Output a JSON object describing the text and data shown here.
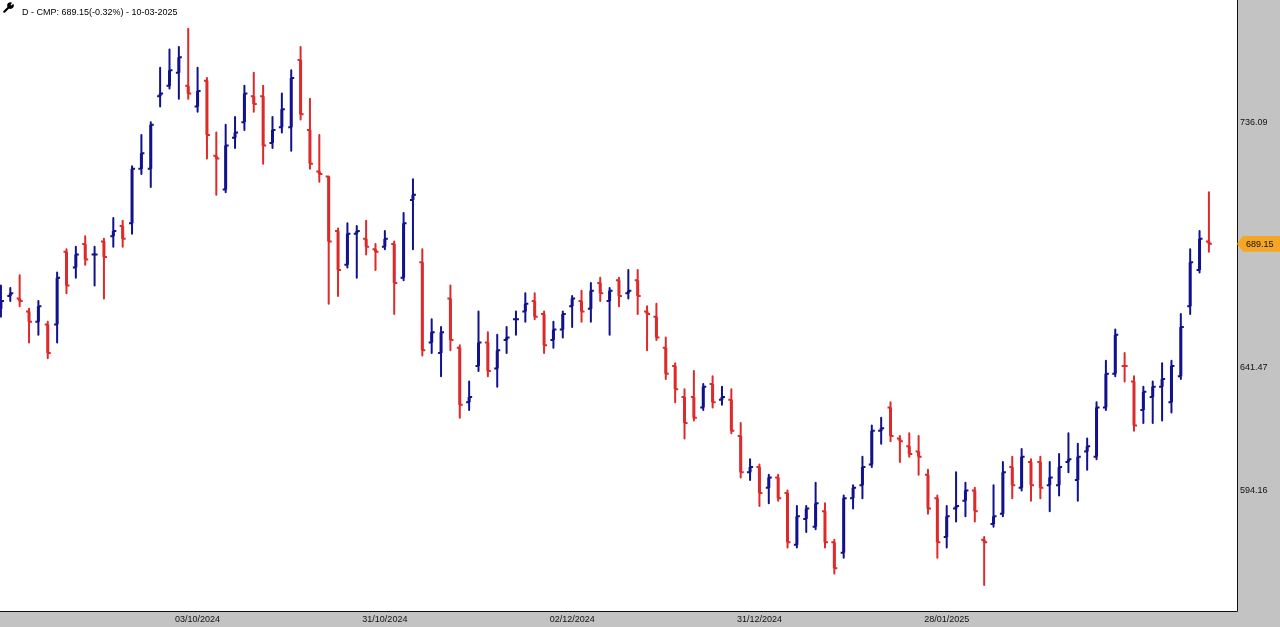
{
  "chart_data": {
    "type": "candlestick",
    "title": "D - CMP: 689.15(-0.32%) - 10-03-2025",
    "categories": [
      null,
      null,
      null,
      null,
      null,
      null,
      null,
      null,
      null,
      null,
      null,
      null,
      null,
      null,
      null,
      null,
      null,
      null,
      null,
      null,
      null,
      "03/10/2024",
      null,
      null,
      null,
      null,
      null,
      null,
      null,
      null,
      null,
      null,
      null,
      null,
      null,
      null,
      null,
      null,
      null,
      null,
      null,
      "31/10/2024",
      null,
      null,
      null,
      null,
      null,
      null,
      null,
      null,
      null,
      null,
      null,
      null,
      null,
      null,
      null,
      null,
      null,
      null,
      null,
      "02/12/2024",
      null,
      null,
      null,
      null,
      null,
      null,
      null,
      null,
      null,
      null,
      null,
      null,
      null,
      null,
      null,
      null,
      null,
      null,
      null,
      "31/12/2024",
      null,
      null,
      null,
      null,
      null,
      null,
      null,
      null,
      null,
      null,
      null,
      null,
      null,
      null,
      null,
      null,
      null,
      null,
      null,
      "28/01/2025",
      null,
      null,
      null,
      null,
      null,
      null,
      null,
      null,
      null,
      null,
      null,
      null,
      null,
      null,
      null,
      null,
      null,
      null,
      null,
      null,
      null,
      null,
      null,
      null,
      null,
      null,
      null,
      null
    ],
    "ohlc": [
      [
        664,
        673,
        661,
        667
      ],
      [
        669,
        672,
        667,
        670
      ],
      [
        668,
        677,
        665,
        667
      ],
      [
        663,
        664,
        651,
        659
      ],
      [
        659,
        667,
        654,
        665
      ],
      [
        658,
        659,
        645,
        647
      ],
      [
        658,
        678,
        651,
        676
      ],
      [
        686,
        687,
        670,
        673
      ],
      [
        680,
        688,
        676,
        685
      ],
      [
        689,
        692,
        681,
        683
      ],
      [
        685,
        688,
        673,
        685
      ],
      [
        690,
        691,
        668,
        684
      ],
      [
        692,
        699,
        688,
        694
      ],
      [
        696,
        698,
        688,
        691
      ],
      [
        697,
        719,
        693,
        718
      ],
      [
        718,
        731,
        716,
        724
      ],
      [
        718,
        736,
        711,
        735
      ],
      [
        746,
        757,
        742,
        747
      ],
      [
        750,
        764,
        749,
        756
      ],
      [
        755,
        765,
        745,
        761
      ],
      [
        750,
        772,
        745,
        747
      ],
      [
        742,
        757,
        740,
        748
      ],
      [
        752,
        753,
        722,
        731
      ],
      [
        723,
        732,
        708,
        722
      ],
      [
        710,
        735,
        709,
        727
      ],
      [
        730,
        738,
        726,
        732
      ],
      [
        736,
        750,
        733,
        747
      ],
      [
        746,
        755,
        740,
        743
      ],
      [
        746,
        750,
        720,
        727
      ],
      [
        728,
        738,
        726,
        733
      ],
      [
        734,
        747,
        732,
        741
      ],
      [
        734,
        756,
        725,
        753
      ],
      [
        760,
        765,
        737,
        739
      ],
      [
        733,
        745,
        718,
        720
      ],
      [
        717,
        731,
        713,
        716
      ],
      [
        715,
        715,
        666,
        690
      ],
      [
        694,
        695,
        669,
        679
      ],
      [
        681,
        697,
        680,
        693
      ],
      [
        693,
        696,
        676,
        694
      ],
      [
        691,
        698,
        685,
        688
      ],
      [
        687,
        689,
        679,
        686
      ],
      [
        688,
        694,
        687,
        691
      ],
      [
        689,
        690,
        662,
        674
      ],
      [
        676,
        701,
        675,
        697
      ],
      [
        706,
        714,
        687,
        708
      ],
      [
        682,
        687,
        646,
        648
      ],
      [
        651,
        660,
        647,
        655
      ],
      [
        647,
        657,
        638,
        655
      ],
      [
        668,
        673,
        648,
        652
      ],
      [
        649,
        650,
        622,
        627
      ],
      [
        628,
        636,
        625,
        630
      ],
      [
        642,
        663,
        640,
        651
      ],
      [
        651,
        655,
        638,
        640
      ],
      [
        641,
        654,
        634,
        648
      ],
      [
        652,
        657,
        647,
        653
      ],
      [
        660,
        663,
        654,
        660
      ],
      [
        663,
        670,
        659,
        666
      ],
      [
        667,
        670,
        660,
        661
      ],
      [
        662,
        663,
        647,
        650
      ],
      [
        652,
        659,
        649,
        656
      ],
      [
        656,
        663,
        653,
        662
      ],
      [
        665,
        669,
        657,
        668
      ],
      [
        667,
        671,
        659,
        663
      ],
      [
        664,
        674,
        659,
        671
      ],
      [
        674,
        676,
        667,
        670
      ],
      [
        667,
        672,
        654,
        671
      ],
      [
        675,
        676,
        665,
        669
      ],
      [
        670,
        679,
        668,
        671
      ],
      [
        675,
        679,
        662,
        669
      ],
      [
        663,
        665,
        648,
        662
      ],
      [
        661,
        666,
        652,
        653
      ],
      [
        649,
        653,
        637,
        639
      ],
      [
        642,
        643,
        628,
        633
      ],
      [
        630,
        633,
        614,
        620
      ],
      [
        630,
        640,
        621,
        622
      ],
      [
        626,
        635,
        625,
        634
      ],
      [
        635,
        638,
        626,
        628
      ],
      [
        629,
        634,
        627,
        630
      ],
      [
        629,
        633,
        616,
        617
      ],
      [
        615,
        620,
        599,
        601
      ],
      [
        601,
        606,
        598,
        603
      ],
      [
        603,
        604,
        588,
        593
      ],
      [
        595,
        600,
        589,
        599
      ],
      [
        599,
        600,
        590,
        591
      ],
      [
        593,
        594,
        572,
        574
      ],
      [
        573,
        588,
        572,
        584
      ],
      [
        583,
        588,
        578,
        587
      ],
      [
        580,
        597,
        579,
        589
      ],
      [
        586,
        589,
        572,
        574
      ],
      [
        574,
        575,
        562,
        564
      ],
      [
        570,
        592,
        568,
        591
      ],
      [
        591,
        596,
        587,
        595
      ],
      [
        596,
        607,
        591,
        603
      ],
      [
        604,
        619,
        603,
        617
      ],
      [
        617,
        622,
        612,
        618
      ],
      [
        626,
        628,
        613,
        615
      ],
      [
        614,
        615,
        605,
        613
      ],
      [
        611,
        616,
        607,
        608
      ],
      [
        609,
        615,
        600,
        607
      ],
      [
        600,
        602,
        585,
        587
      ],
      [
        591,
        592,
        568,
        574
      ],
      [
        576,
        588,
        572,
        584
      ],
      [
        587,
        601,
        582,
        588
      ],
      [
        590,
        597,
        584,
        594
      ],
      [
        594,
        595,
        582,
        586
      ],
      [
        575,
        576,
        557.5,
        574
      ],
      [
        581,
        596,
        580,
        584
      ],
      [
        585,
        605,
        584,
        601
      ],
      [
        603,
        607,
        591,
        596
      ],
      [
        595,
        610,
        594,
        607
      ],
      [
        605,
        606,
        590,
        596
      ],
      [
        605,
        607,
        591,
        595
      ],
      [
        596,
        605,
        586,
        599
      ],
      [
        596,
        608,
        592,
        603
      ],
      [
        605,
        616,
        601,
        606
      ],
      [
        598,
        612,
        590,
        607
      ],
      [
        609,
        614,
        602,
        611
      ],
      [
        607,
        628,
        606,
        626
      ],
      [
        626,
        644,
        625,
        639
      ],
      [
        639,
        656,
        638,
        654
      ],
      [
        642,
        647,
        636,
        642
      ],
      [
        636,
        638,
        617,
        619
      ],
      [
        625,
        634,
        620,
        632
      ],
      [
        630,
        636,
        620,
        634
      ],
      [
        634,
        643,
        621,
        637
      ],
      [
        628,
        644,
        624,
        642
      ],
      [
        638,
        662,
        637,
        657
      ],
      [
        665,
        687,
        662,
        682
      ],
      [
        679,
        694,
        678,
        691
      ],
      [
        690,
        709,
        686,
        689.15
      ]
    ],
    "colors": [
      "#12128c",
      "#12128c",
      "#dd2a2a",
      "#dd2a2a",
      "#12128c",
      "#dd2a2a",
      "#12128c",
      "#dd2a2a",
      "#12128c",
      "#dd2a2a",
      "#12128c",
      "#dd2a2a",
      "#12128c",
      "#dd2a2a",
      "#12128c",
      "#12128c",
      "#12128c",
      "#12128c",
      "#12128c",
      "#12128c",
      "#dd2a2a",
      "#12128c",
      "#dd2a2a",
      "#dd2a2a",
      "#12128c",
      "#12128c",
      "#12128c",
      "#dd2a2a",
      "#dd2a2a",
      "#12128c",
      "#12128c",
      "#12128c",
      "#dd2a2a",
      "#dd2a2a",
      "#dd2a2a",
      "#dd2a2a",
      "#dd2a2a",
      "#12128c",
      "#12128c",
      "#dd2a2a",
      "#dd2a2a",
      "#12128c",
      "#dd2a2a",
      "#12128c",
      "#12128c",
      "#dd2a2a",
      "#12128c",
      "#12128c",
      "#dd2a2a",
      "#dd2a2a",
      "#12128c",
      "#12128c",
      "#dd2a2a",
      "#12128c",
      "#12128c",
      "#12128c",
      "#12128c",
      "#dd2a2a",
      "#dd2a2a",
      "#12128c",
      "#12128c",
      "#12128c",
      "#dd2a2a",
      "#12128c",
      "#dd2a2a",
      "#12128c",
      "#dd2a2a",
      "#12128c",
      "#dd2a2a",
      "#dd2a2a",
      "#dd2a2a",
      "#dd2a2a",
      "#dd2a2a",
      "#dd2a2a",
      "#dd2a2a",
      "#12128c",
      "#dd2a2a",
      "#12128c",
      "#dd2a2a",
      "#dd2a2a",
      "#12128c",
      "#dd2a2a",
      "#12128c",
      "#dd2a2a",
      "#dd2a2a",
      "#12128c",
      "#12128c",
      "#12128c",
      "#dd2a2a",
      "#dd2a2a",
      "#12128c",
      "#12128c",
      "#12128c",
      "#12128c",
      "#12128c",
      "#dd2a2a",
      "#dd2a2a",
      "#dd2a2a",
      "#dd2a2a",
      "#dd2a2a",
      "#dd2a2a",
      "#12128c",
      "#12128c",
      "#12128c",
      "#dd2a2a",
      "#dd2a2a",
      "#12128c",
      "#12128c",
      "#dd2a2a",
      "#12128c",
      "#dd2a2a",
      "#dd2a2a",
      "#12128c",
      "#12128c",
      "#12128c",
      "#12128c",
      "#12128c",
      "#12128c",
      "#12128c",
      "#12128c",
      "#dd2a2a",
      "#dd2a2a",
      "#12128c",
      "#12128c",
      "#12128c",
      "#12128c",
      "#12128c",
      "#12128c",
      "#12128c",
      "#dd2a2a"
    ],
    "ylim": [
      547.5,
      783.1
    ],
    "yticks": [
      594.16,
      641.47,
      736.09
    ],
    "annotations": [
      "689.15"
    ]
  }
}
